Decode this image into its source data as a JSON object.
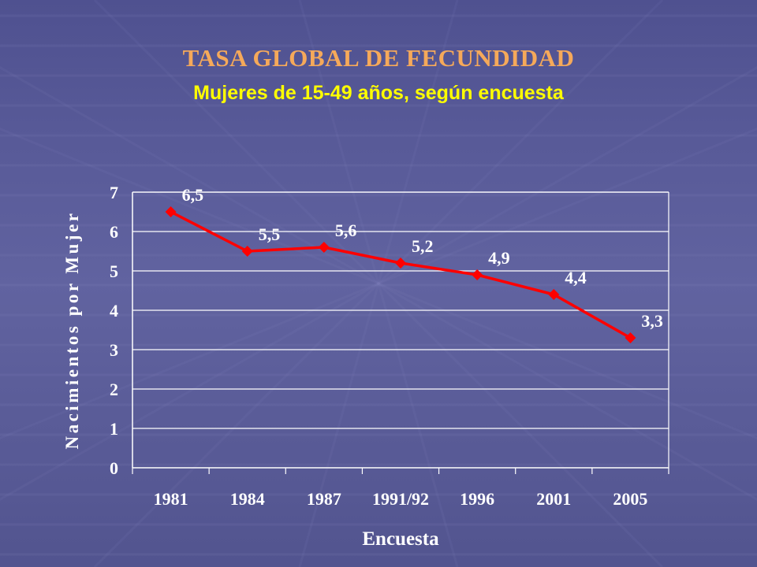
{
  "slide": {
    "title": "TASA GLOBAL DE FECUNDIDAD",
    "subtitle": "Mujeres de 15-49 años, según encuesta"
  },
  "colors": {
    "background": "#5a5c97",
    "title": "#f5a95a",
    "subtitle": "#ffff00",
    "series": "#ff0000",
    "text": "#ffffff",
    "gridline": "#ffffff"
  },
  "chart_data": {
    "type": "line",
    "categories": [
      "1981",
      "1984",
      "1987",
      "1991/92",
      "1996",
      "2001",
      "2005"
    ],
    "values": [
      6.5,
      5.5,
      5.6,
      5.2,
      4.9,
      4.4,
      3.3
    ],
    "data_labels": [
      "6,5",
      "5,5",
      "5,6",
      "5,2",
      "4,9",
      "4,4",
      "3,3"
    ],
    "xlabel": "Encuesta",
    "ylabel": "Nacimientos por Mujer",
    "ylim": [
      0,
      7
    ],
    "yticks": [
      "0",
      "1",
      "2",
      "3",
      "4",
      "5",
      "6",
      "7"
    ],
    "grid": true,
    "marker": "diamond",
    "legend": "none"
  }
}
